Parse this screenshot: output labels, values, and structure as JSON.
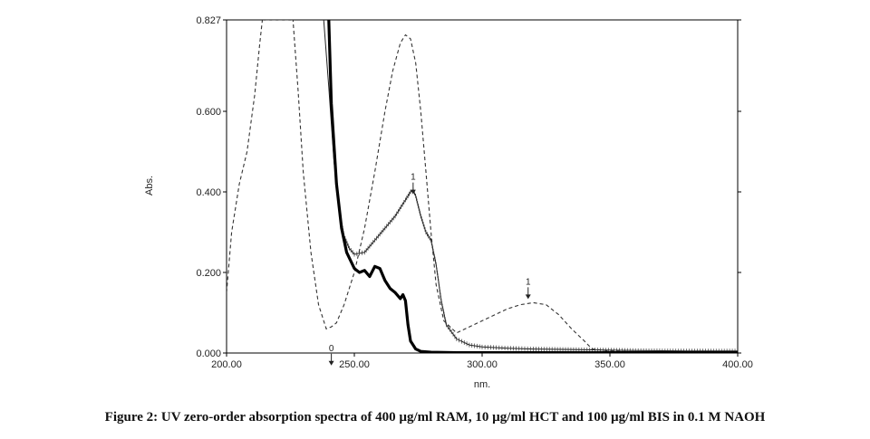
{
  "caption": "Figure 2: UV zero-order absorption spectra of 400 µg/ml RAM, 10 µg/ml HCT and 100 µg/ml BIS in 0.1 M NAOH",
  "chart_data": {
    "type": "line",
    "title": "",
    "xlabel": "nm.",
    "ylabel": "Abs.",
    "xlim": [
      200,
      400
    ],
    "ylim": [
      0,
      0.827
    ],
    "xticks": [
      200,
      250,
      300,
      350,
      400
    ],
    "xtick_labels": [
      "200.00",
      "250.00",
      "300.00",
      "350.00",
      "400.00"
    ],
    "yticks": [
      0,
      0.2,
      0.4,
      0.6,
      0.827
    ],
    "ytick_labels": [
      "0.000",
      "0.200",
      "0.400",
      "0.600",
      "0.827"
    ],
    "grid": false,
    "series": [
      {
        "style": "dashed",
        "x": [
          200,
          202,
          205,
          208,
          211,
          213,
          214,
          215,
          225,
          226,
          228,
          230,
          233,
          236,
          239,
          241,
          243,
          246,
          250,
          254,
          258,
          262,
          265,
          268,
          270,
          272,
          274,
          276,
          278,
          280,
          282,
          285,
          290,
          295,
          300,
          305,
          310,
          315,
          320,
          325,
          330,
          335,
          340,
          343,
          350,
          360,
          380,
          400
        ],
        "y": [
          0.15,
          0.3,
          0.42,
          0.5,
          0.64,
          0.77,
          0.827,
          0.827,
          0.827,
          0.827,
          0.65,
          0.45,
          0.25,
          0.12,
          0.06,
          0.065,
          0.075,
          0.12,
          0.2,
          0.31,
          0.45,
          0.6,
          0.7,
          0.77,
          0.79,
          0.78,
          0.72,
          0.6,
          0.45,
          0.3,
          0.17,
          0.08,
          0.05,
          0.065,
          0.08,
          0.095,
          0.11,
          0.12,
          0.125,
          0.12,
          0.095,
          0.06,
          0.03,
          0.01,
          0.005,
          0.003,
          0.002,
          0.002
        ]
      },
      {
        "style": "thin-ticked",
        "x": [
          238,
          240,
          242,
          244,
          246,
          248,
          250,
          254,
          258,
          262,
          266,
          270,
          272,
          273,
          274,
          276,
          278,
          280,
          282,
          284,
          286,
          290,
          295,
          300,
          310,
          320,
          340,
          360,
          380,
          400
        ],
        "y": [
          0.827,
          0.66,
          0.48,
          0.36,
          0.29,
          0.26,
          0.245,
          0.25,
          0.28,
          0.31,
          0.34,
          0.38,
          0.4,
          0.405,
          0.39,
          0.34,
          0.3,
          0.28,
          0.22,
          0.13,
          0.07,
          0.035,
          0.02,
          0.015,
          0.012,
          0.01,
          0.008,
          0.006,
          0.005,
          0.005
        ]
      },
      {
        "style": "thick",
        "x": [
          240,
          241,
          243,
          245,
          247,
          250,
          252,
          254,
          256,
          258,
          260,
          262,
          264,
          266,
          268,
          269,
          270,
          271,
          272,
          274,
          276,
          280,
          290,
          300,
          320,
          350,
          400
        ],
        "y": [
          0.827,
          0.62,
          0.42,
          0.31,
          0.25,
          0.21,
          0.2,
          0.205,
          0.19,
          0.215,
          0.21,
          0.18,
          0.16,
          0.15,
          0.135,
          0.145,
          0.13,
          0.07,
          0.03,
          0.01,
          0.004,
          0.002,
          0.001,
          0.001,
          0.001,
          0.001,
          0.001
        ]
      }
    ],
    "annotations": [
      {
        "text": "1",
        "x": 273,
        "y": 0.43
      },
      {
        "text": "1",
        "x": 318,
        "y": 0.17
      },
      {
        "text": "0",
        "x": 241,
        "y": 0.005
      }
    ]
  }
}
